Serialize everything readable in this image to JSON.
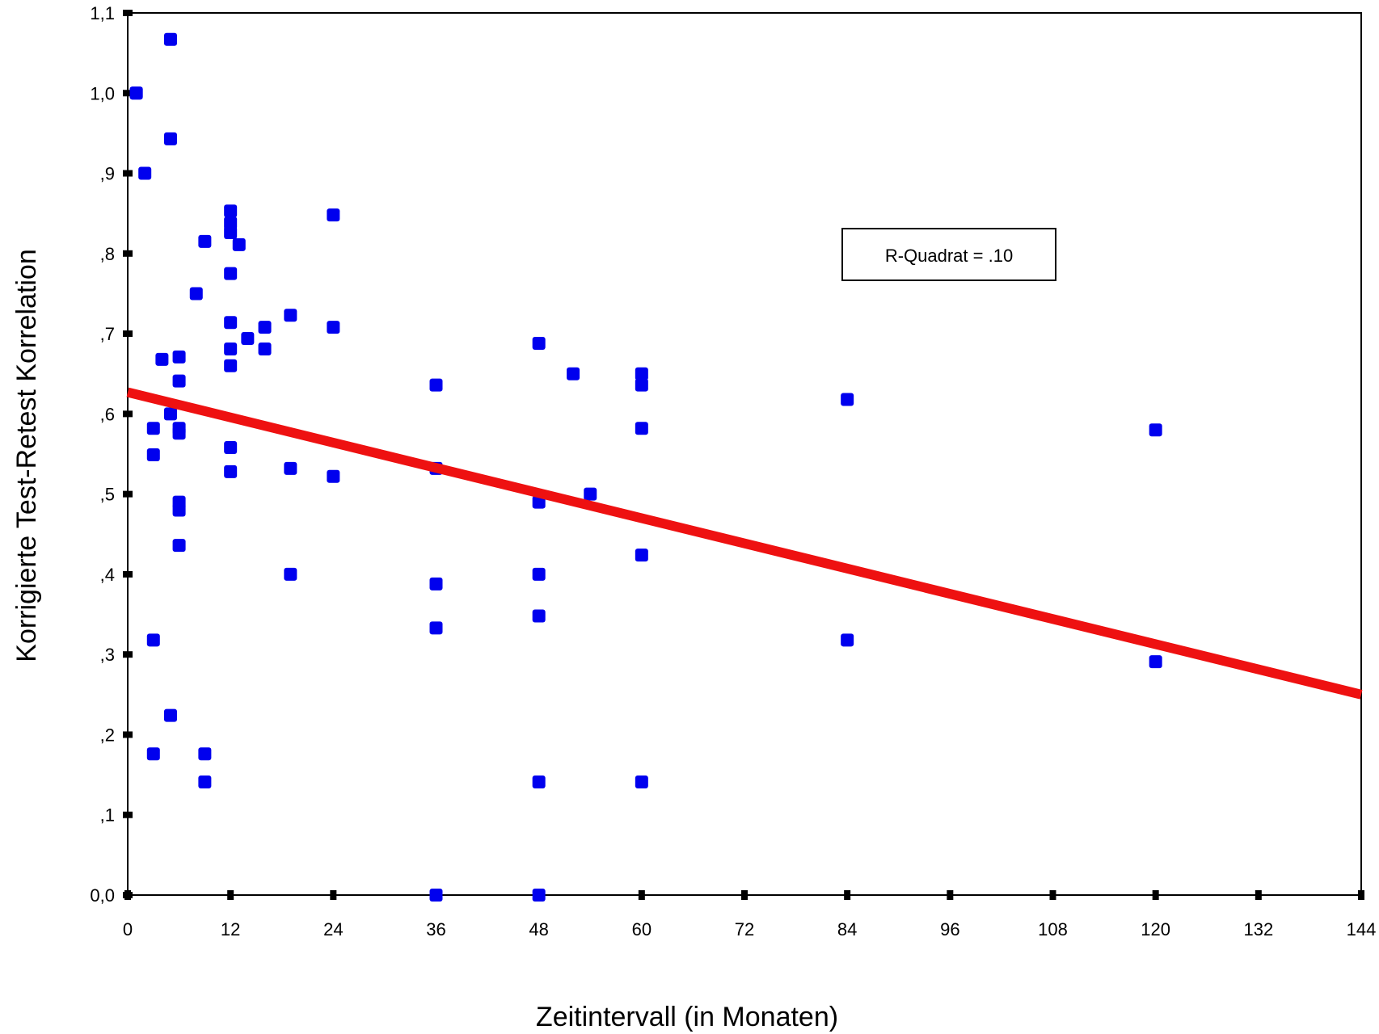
{
  "chart_data": {
    "type": "scatter",
    "xlabel": "Zeitintervall (in Monaten)",
    "ylabel": "Korrigierte Test-Retest Korrelation",
    "xlim": [
      0,
      144
    ],
    "ylim": [
      0.0,
      1.1
    ],
    "x_ticks": [
      0,
      12,
      24,
      36,
      48,
      60,
      72,
      84,
      96,
      108,
      120,
      132,
      144
    ],
    "x_tick_labels": [
      "0",
      "12",
      "24",
      "36",
      "48",
      "60",
      "72",
      "84",
      "96",
      "108",
      "120",
      "132",
      "144"
    ],
    "y_ticks": [
      0.0,
      0.1,
      0.2,
      0.3,
      0.4,
      0.5,
      0.6,
      0.7,
      0.8,
      0.9,
      1.0,
      1.1
    ],
    "y_tick_labels": [
      "0,0",
      ",1",
      ",2",
      ",3",
      ",4",
      ",5",
      ",6",
      ",7",
      ",8",
      ",9",
      "1,0",
      "1,1"
    ],
    "grid": false,
    "annotation": "R-Quadrat = .10",
    "marker_color": "#0000ee",
    "fit_line_color": "#ee1111",
    "series": [
      {
        "points": [
          [
            1,
            1.0
          ],
          [
            1,
            1.0
          ],
          [
            2,
            0.9
          ],
          [
            5,
            1.067
          ],
          [
            5,
            0.943
          ],
          [
            3,
            0.582
          ],
          [
            3,
            0.549
          ],
          [
            3,
            0.318
          ],
          [
            3,
            0.176
          ],
          [
            4,
            0.668
          ],
          [
            5,
            0.6
          ],
          [
            5,
            0.224
          ],
          [
            6,
            0.671
          ],
          [
            6,
            0.641
          ],
          [
            6,
            0.582
          ],
          [
            6,
            0.576
          ],
          [
            6,
            0.49
          ],
          [
            6,
            0.48
          ],
          [
            6,
            0.436
          ],
          [
            8,
            0.75
          ],
          [
            9,
            0.815
          ],
          [
            9,
            0.176
          ],
          [
            9,
            0.141
          ],
          [
            12,
            0.853
          ],
          [
            12,
            0.838
          ],
          [
            12,
            0.826
          ],
          [
            12,
            0.775
          ],
          [
            12,
            0.714
          ],
          [
            12,
            0.681
          ],
          [
            12,
            0.66
          ],
          [
            12,
            0.558
          ],
          [
            12,
            0.528
          ],
          [
            13,
            0.811
          ],
          [
            14,
            0.694
          ],
          [
            16,
            0.708
          ],
          [
            16,
            0.681
          ],
          [
            19,
            0.723
          ],
          [
            19,
            0.532
          ],
          [
            19,
            0.4
          ],
          [
            24,
            0.848
          ],
          [
            24,
            0.708
          ],
          [
            24,
            0.522
          ],
          [
            36,
            0.636
          ],
          [
            36,
            0.532
          ],
          [
            36,
            0.388
          ],
          [
            36,
            0.333
          ],
          [
            36,
            0.0
          ],
          [
            48,
            0.688
          ],
          [
            48,
            0.49
          ],
          [
            48,
            0.4
          ],
          [
            48,
            0.348
          ],
          [
            48,
            0.141
          ],
          [
            48,
            0.0
          ],
          [
            52,
            0.65
          ],
          [
            54,
            0.5
          ],
          [
            60,
            0.65
          ],
          [
            60,
            0.636
          ],
          [
            60,
            0.582
          ],
          [
            60,
            0.424
          ],
          [
            60,
            0.141
          ],
          [
            84,
            0.618
          ],
          [
            84,
            0.318
          ],
          [
            120,
            0.58
          ],
          [
            120,
            0.291
          ]
        ]
      }
    ],
    "fit_line": {
      "x": [
        0,
        144
      ],
      "y": [
        0.627,
        0.25
      ]
    }
  }
}
